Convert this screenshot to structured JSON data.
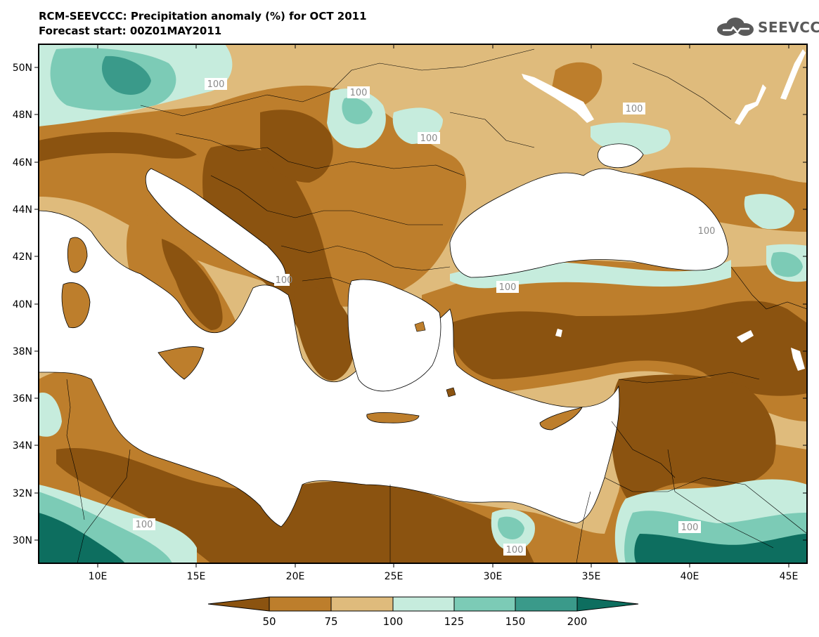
{
  "title": "RCM-SEEVCCC: Precipitation anomaly (%) for OCT 2011",
  "subtitle": "Forecast start: 00Z01MAY2011",
  "logo_text": "SEEVCCC",
  "map": {
    "lat_ticks": [
      "50N",
      "48N",
      "46N",
      "44N",
      "42N",
      "40N",
      "38N",
      "36N",
      "34N",
      "32N",
      "30N"
    ],
    "lon_ticks": [
      "10E",
      "15E",
      "20E",
      "25E",
      "30E",
      "35E",
      "40E",
      "45E"
    ],
    "contour_labels": [
      "100",
      "100",
      "100",
      "100",
      "100",
      "100",
      "100",
      "100",
      "100",
      "100",
      "100"
    ]
  },
  "colorbar": {
    "levels": [
      "50",
      "75",
      "100",
      "125",
      "150",
      "200"
    ],
    "colors": [
      "#8b5310",
      "#bd7e2c",
      "#dfbb7c",
      "#c6ecdd",
      "#7ccbb6",
      "#3a9a8a",
      "#0d6e5f"
    ]
  },
  "colors": {
    "very_dry": "#8b5310",
    "dry": "#bd7e2c",
    "slightly_dry": "#dfbb7c",
    "slightly_wet": "#c6ecdd",
    "wet": "#7ccbb6",
    "very_wet": "#3a9a8a",
    "extremely_wet": "#0d6e5f",
    "sea": "#ffffff"
  }
}
